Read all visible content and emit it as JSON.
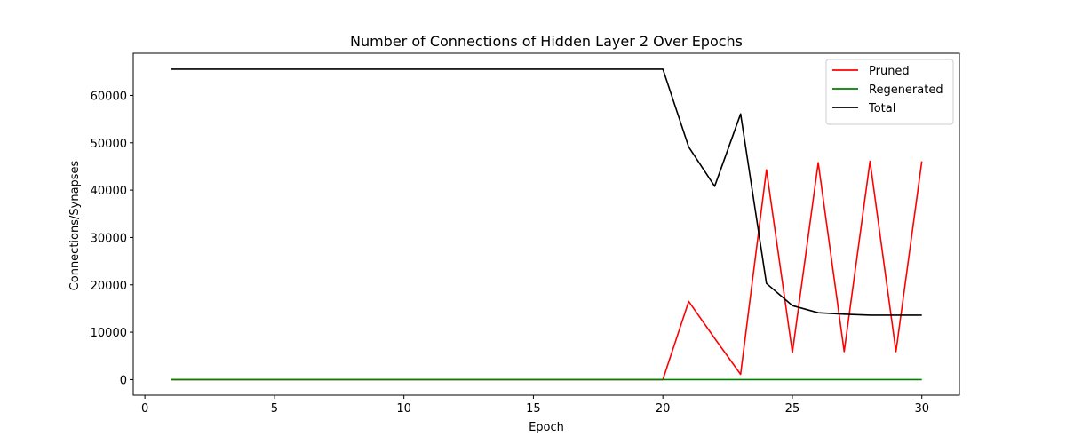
{
  "chart_data": {
    "type": "line",
    "title": "Number of Connections of Hidden Layer 2 Over Epochs",
    "xlabel": "Epoch",
    "ylabel": "Connections/Synapses",
    "xlim": [
      -0.45,
      31.45
    ],
    "ylim": [
      -3300,
      68900
    ],
    "xticks": [
      0,
      5,
      10,
      15,
      20,
      25,
      30
    ],
    "yticks": [
      0,
      10000,
      20000,
      30000,
      40000,
      50000,
      60000
    ],
    "grid": false,
    "legend_position": "top-right",
    "x": [
      1,
      2,
      3,
      4,
      5,
      6,
      7,
      8,
      9,
      10,
      11,
      12,
      13,
      14,
      15,
      16,
      17,
      18,
      19,
      20,
      21,
      22,
      23,
      24,
      25,
      26,
      27,
      28,
      29,
      30
    ],
    "series": [
      {
        "name": "Pruned",
        "color": "#ff0000",
        "values": [
          0,
          0,
          0,
          0,
          0,
          0,
          0,
          0,
          0,
          0,
          0,
          0,
          0,
          0,
          0,
          0,
          0,
          0,
          0,
          0,
          16500,
          8700,
          1100,
          44300,
          5700,
          45800,
          5900,
          46100,
          5900,
          46100
        ]
      },
      {
        "name": "Regenerated",
        "color": "#008000",
        "values": [
          0,
          0,
          0,
          0,
          0,
          0,
          0,
          0,
          0,
          0,
          0,
          0,
          0,
          0,
          0,
          0,
          0,
          0,
          0,
          0,
          0,
          0,
          0,
          0,
          0,
          0,
          0,
          0,
          0,
          0
        ]
      },
      {
        "name": "Total",
        "color": "#000000",
        "values": [
          65536,
          65536,
          65536,
          65536,
          65536,
          65536,
          65536,
          65536,
          65536,
          65536,
          65536,
          65536,
          65536,
          65536,
          65536,
          65536,
          65536,
          65536,
          65536,
          65536,
          49100,
          40800,
          56100,
          20300,
          15600,
          14100,
          13800,
          13600,
          13600,
          13600
        ]
      }
    ]
  }
}
